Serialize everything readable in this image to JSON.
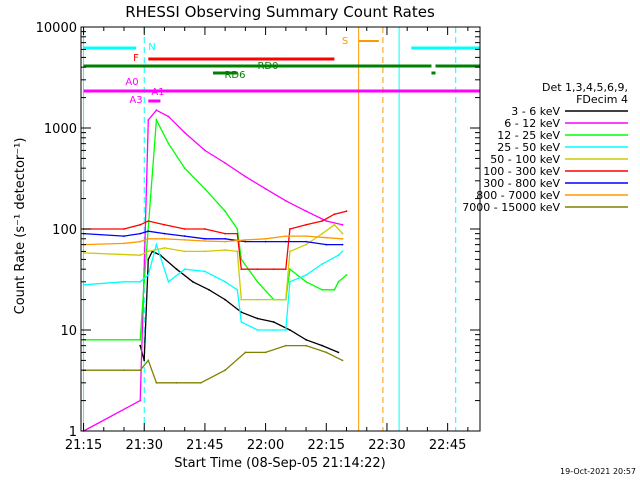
{
  "chart_data": {
    "type": "line",
    "title": "RHESSI Observing Summary Count Rates",
    "xlabel": "Start Time (08-Sep-05 21:14:22)",
    "ylabel": "Count Rate (s⁻¹ detector⁻¹)",
    "y_scale": "log",
    "ylim": [
      1,
      10000
    ],
    "xlim": [
      "21:14:22",
      "22:53:00"
    ],
    "x_ticks": [
      "21:15",
      "21:30",
      "21:45",
      "22:00",
      "22:15",
      "22:30",
      "22:45"
    ],
    "y_ticks": [
      "1",
      "10",
      "100",
      "1000",
      "10000"
    ],
    "timestamp": "19-Oct-2021 20:57",
    "legend": {
      "header": [
        "Det 1,3,4,5,6,9,",
        "FDecim 4"
      ],
      "placement": "right"
    },
    "series": [
      {
        "name": "3 - 6 keV",
        "color": "#000000",
        "points": [
          [
            "21:29",
            7
          ],
          [
            "21:30",
            5
          ],
          [
            "21:31",
            50
          ],
          [
            "21:32",
            60
          ],
          [
            "21:34",
            55
          ],
          [
            "21:38",
            40
          ],
          [
            "21:42",
            30
          ],
          [
            "21:46",
            25
          ],
          [
            "21:50",
            20
          ],
          [
            "21:54",
            15
          ],
          [
            "21:58",
            13
          ],
          [
            "22:02",
            12
          ],
          [
            "22:06",
            10
          ],
          [
            "22:10",
            8
          ],
          [
            "22:14",
            7
          ],
          [
            "22:18",
            6
          ]
        ]
      },
      {
        "name": "6 - 12 keV",
        "color": "#ff00ff",
        "points": [
          [
            "21:15",
            1
          ],
          [
            "21:29",
            2
          ],
          [
            "21:30",
            40
          ],
          [
            "21:31",
            1200
          ],
          [
            "21:33",
            1500
          ],
          [
            "21:36",
            1300
          ],
          [
            "21:40",
            900
          ],
          [
            "21:45",
            600
          ],
          [
            "21:50",
            450
          ],
          [
            "21:55",
            330
          ],
          [
            "22:00",
            250
          ],
          [
            "22:05",
            190
          ],
          [
            "22:10",
            150
          ],
          [
            "22:15",
            120
          ],
          [
            "22:19",
            110
          ]
        ]
      },
      {
        "name": "12 - 25 keV",
        "color": "#00ff00",
        "points": [
          [
            "21:15",
            8
          ],
          [
            "21:29",
            8
          ],
          [
            "21:30",
            30
          ],
          [
            "21:33",
            1200
          ],
          [
            "21:36",
            700
          ],
          [
            "21:40",
            400
          ],
          [
            "21:45",
            250
          ],
          [
            "21:50",
            150
          ],
          [
            "21:53",
            100
          ],
          [
            "21:54",
            50
          ],
          [
            "21:58",
            30
          ],
          [
            "22:02",
            20
          ],
          [
            "22:05",
            20
          ],
          [
            "22:06",
            40
          ],
          [
            "22:10",
            30
          ],
          [
            "22:14",
            25
          ],
          [
            "22:17",
            25
          ],
          [
            "22:18",
            30
          ],
          [
            "22:20",
            35
          ]
        ]
      },
      {
        "name": "25 - 50 keV",
        "color": "#00ffff",
        "points": [
          [
            "21:15",
            28
          ],
          [
            "21:25",
            30
          ],
          [
            "21:29",
            30
          ],
          [
            "21:31",
            35
          ],
          [
            "21:33",
            70
          ],
          [
            "21:36",
            30
          ],
          [
            "21:40",
            40
          ],
          [
            "21:45",
            38
          ],
          [
            "21:50",
            30
          ],
          [
            "21:53",
            25
          ],
          [
            "21:54",
            12
          ],
          [
            "21:58",
            10
          ],
          [
            "22:02",
            10
          ],
          [
            "22:05",
            10
          ],
          [
            "22:06",
            30
          ],
          [
            "22:10",
            35
          ],
          [
            "22:14",
            45
          ],
          [
            "22:18",
            55
          ],
          [
            "22:19",
            60
          ]
        ]
      },
      {
        "name": "50 - 100 keV",
        "color": "#cccc00",
        "points": [
          [
            "21:15",
            58
          ],
          [
            "21:29",
            55
          ],
          [
            "21:31",
            60
          ],
          [
            "21:35",
            65
          ],
          [
            "21:40",
            60
          ],
          [
            "21:45",
            60
          ],
          [
            "21:50",
            62
          ],
          [
            "21:53",
            60
          ],
          [
            "21:54",
            20
          ],
          [
            "21:58",
            20
          ],
          [
            "22:02",
            20
          ],
          [
            "22:05",
            20
          ],
          [
            "22:06",
            60
          ],
          [
            "22:10",
            70
          ],
          [
            "22:14",
            90
          ],
          [
            "22:17",
            110
          ],
          [
            "22:19",
            90
          ]
        ]
      },
      {
        "name": "100 - 300 keV",
        "color": "#ff0000",
        "points": [
          [
            "21:15",
            100
          ],
          [
            "21:25",
            100
          ],
          [
            "21:29",
            110
          ],
          [
            "21:31",
            120
          ],
          [
            "21:35",
            110
          ],
          [
            "21:40",
            100
          ],
          [
            "21:45",
            100
          ],
          [
            "21:50",
            90
          ],
          [
            "21:53",
            90
          ],
          [
            "21:54",
            40
          ],
          [
            "21:58",
            40
          ],
          [
            "22:02",
            40
          ],
          [
            "22:05",
            40
          ],
          [
            "22:06",
            100
          ],
          [
            "22:10",
            110
          ],
          [
            "22:14",
            120
          ],
          [
            "22:17",
            140
          ],
          [
            "22:20",
            150
          ]
        ]
      },
      {
        "name": "300 - 800 keV",
        "color": "#0000ff",
        "points": [
          [
            "21:15",
            90
          ],
          [
            "21:25",
            85
          ],
          [
            "21:29",
            90
          ],
          [
            "21:31",
            95
          ],
          [
            "21:35",
            90
          ],
          [
            "21:40",
            85
          ],
          [
            "21:45",
            80
          ],
          [
            "21:50",
            80
          ],
          [
            "21:55",
            75
          ],
          [
            "22:00",
            75
          ],
          [
            "22:05",
            75
          ],
          [
            "22:10",
            75
          ],
          [
            "22:15",
            70
          ],
          [
            "22:19",
            70
          ]
        ]
      },
      {
        "name": "800 - 7000 keV",
        "color": "#ff9900",
        "points": [
          [
            "21:15",
            70
          ],
          [
            "21:25",
            72
          ],
          [
            "21:29",
            75
          ],
          [
            "21:31",
            80
          ],
          [
            "21:35",
            80
          ],
          [
            "21:40",
            78
          ],
          [
            "21:45",
            76
          ],
          [
            "21:50",
            75
          ],
          [
            "21:55",
            78
          ],
          [
            "22:00",
            80
          ],
          [
            "22:05",
            85
          ],
          [
            "22:10",
            85
          ],
          [
            "22:15",
            82
          ],
          [
            "22:19",
            80
          ]
        ]
      },
      {
        "name": "7000 - 15000 keV",
        "color": "#808000",
        "points": [
          [
            "21:15",
            4
          ],
          [
            "21:25",
            4
          ],
          [
            "21:29",
            4
          ],
          [
            "21:31",
            5
          ],
          [
            "21:33",
            3
          ],
          [
            "21:38",
            3
          ],
          [
            "21:44",
            3
          ],
          [
            "21:50",
            4
          ],
          [
            "21:55",
            6
          ],
          [
            "22:00",
            6
          ],
          [
            "22:05",
            7
          ],
          [
            "22:10",
            7
          ],
          [
            "22:15",
            6
          ],
          [
            "22:19",
            5
          ]
        ]
      }
    ],
    "annotations": [
      {
        "label": "N",
        "color": "#00ffff"
      },
      {
        "label": "S",
        "color": "#ff9900"
      },
      {
        "label": "F",
        "color": "#ff0000"
      },
      {
        "label": "RD0",
        "color": "#008000"
      },
      {
        "label": "RD6",
        "color": "#008000"
      },
      {
        "label": "A0",
        "color": "#ff00ff"
      },
      {
        "label": "A1",
        "color": "#ff00ff"
      },
      {
        "label": "A3",
        "color": "#ff00ff"
      }
    ]
  }
}
